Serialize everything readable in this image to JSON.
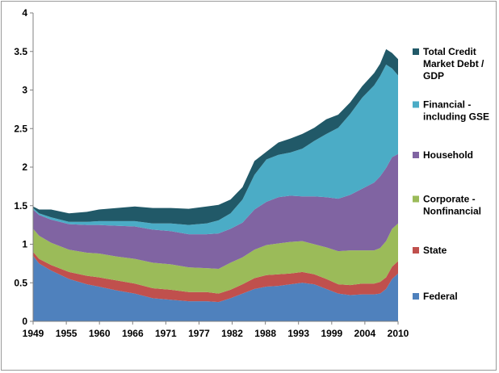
{
  "chart_data": {
    "type": "area",
    "stacked": true,
    "title": "",
    "xlabel": "",
    "ylabel": "",
    "xlim": [
      1949,
      2010
    ],
    "ylim": [
      0,
      4
    ],
    "x_tick_labels": [
      "1949",
      "1955",
      "1960",
      "1966",
      "1971",
      "1977",
      "1982",
      "1988",
      "1993",
      "1999",
      "2004",
      "2010"
    ],
    "x_tick_positions": [
      1949,
      1954.55,
      1960.09,
      1965.64,
      1971.18,
      1976.73,
      1982.27,
      1987.82,
      1993.36,
      1998.91,
      2004.45,
      2010
    ],
    "y_ticks": [
      0,
      0.5,
      1,
      1.5,
      2,
      2.5,
      3,
      3.5,
      4
    ],
    "y_tick_labels": [
      "0",
      "0.5",
      "1",
      "1.5",
      "2",
      "2.5",
      "3",
      "3.5",
      "4"
    ],
    "grid": false,
    "legend_position": "right",
    "x": [
      1949,
      1950,
      1952,
      1955,
      1958,
      1960,
      1963,
      1966,
      1969,
      1972,
      1975,
      1978,
      1980,
      1982,
      1984,
      1986,
      1988,
      1990,
      1992,
      1994,
      1996,
      1998,
      2000,
      2002,
      2004,
      2006,
      2007,
      2008,
      2009,
      2010
    ],
    "series": [
      {
        "name": "Federal",
        "color": "#4f81bd",
        "values": [
          0.85,
          0.75,
          0.66,
          0.55,
          0.48,
          0.45,
          0.4,
          0.36,
          0.3,
          0.28,
          0.26,
          0.26,
          0.25,
          0.3,
          0.36,
          0.42,
          0.45,
          0.46,
          0.48,
          0.5,
          0.48,
          0.42,
          0.36,
          0.34,
          0.35,
          0.35,
          0.36,
          0.42,
          0.55,
          0.62
        ]
      },
      {
        "name": "State",
        "color": "#c0504d",
        "values": [
          0.05,
          0.06,
          0.07,
          0.09,
          0.11,
          0.12,
          0.13,
          0.13,
          0.13,
          0.13,
          0.12,
          0.12,
          0.11,
          0.11,
          0.12,
          0.14,
          0.15,
          0.15,
          0.14,
          0.14,
          0.13,
          0.13,
          0.12,
          0.13,
          0.14,
          0.14,
          0.15,
          0.15,
          0.16,
          0.16
        ]
      },
      {
        "name": "Corporate - Nonfinancial",
        "color": "#9bbb59",
        "values": [
          0.3,
          0.3,
          0.29,
          0.29,
          0.3,
          0.31,
          0.31,
          0.32,
          0.33,
          0.33,
          0.32,
          0.31,
          0.32,
          0.35,
          0.35,
          0.37,
          0.39,
          0.4,
          0.41,
          0.4,
          0.39,
          0.41,
          0.43,
          0.45,
          0.43,
          0.43,
          0.44,
          0.47,
          0.49,
          0.49
        ]
      },
      {
        "name": "Household",
        "color": "#8064a2",
        "values": [
          0.25,
          0.27,
          0.3,
          0.33,
          0.36,
          0.37,
          0.4,
          0.42,
          0.43,
          0.43,
          0.43,
          0.44,
          0.46,
          0.44,
          0.45,
          0.52,
          0.56,
          0.6,
          0.6,
          0.58,
          0.62,
          0.65,
          0.68,
          0.72,
          0.8,
          0.88,
          0.93,
          0.95,
          0.93,
          0.9
        ]
      },
      {
        "name": "Financial - including GSE",
        "color": "#4bacc6",
        "values": [
          0.02,
          0.02,
          0.03,
          0.03,
          0.04,
          0.05,
          0.06,
          0.07,
          0.08,
          0.1,
          0.12,
          0.14,
          0.17,
          0.2,
          0.3,
          0.45,
          0.55,
          0.55,
          0.56,
          0.62,
          0.72,
          0.82,
          0.92,
          1.05,
          1.18,
          1.26,
          1.3,
          1.34,
          1.15,
          1.02
        ]
      },
      {
        "name": "Total Credit Market Debt / GDP",
        "color": "#215968",
        "values": [
          0.02,
          0.05,
          0.1,
          0.11,
          0.13,
          0.15,
          0.17,
          0.19,
          0.2,
          0.2,
          0.21,
          0.22,
          0.2,
          0.18,
          0.16,
          0.18,
          0.1,
          0.16,
          0.18,
          0.19,
          0.17,
          0.19,
          0.17,
          0.15,
          0.15,
          0.16,
          0.16,
          0.2,
          0.2,
          0.21
        ]
      }
    ]
  }
}
